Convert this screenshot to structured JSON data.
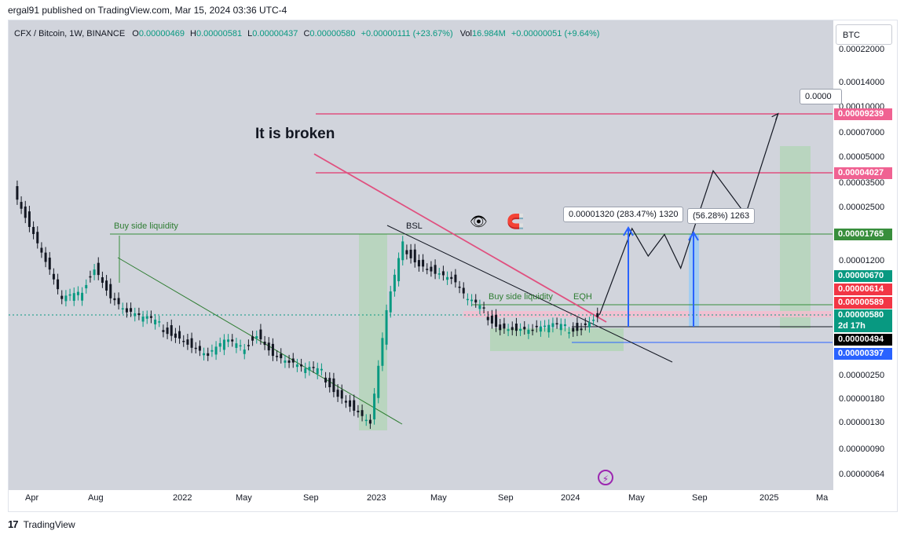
{
  "header": {
    "publisher_line": "ergal91 published on TradingView.com, Mar 15, 2024 03:36 UTC-4"
  },
  "legend": {
    "symbol": "CFX / Bitcoin, 1W, BINANCE",
    "open_label": "O",
    "open": "0.00000469",
    "high_label": "H",
    "high": "0.00000581",
    "low_label": "L",
    "low": "0.00000437",
    "close_label": "C",
    "close": "0.00000580",
    "change": "+0.00000111 (+23.67%)",
    "vol_label": "Vol",
    "vol": "16.984M",
    "vol_change": "+0.00000051 (+9.64%)"
  },
  "currency_button": "BTC",
  "colors": {
    "up": "#089981",
    "down": "#131722",
    "pink": "#e0507f",
    "green_line": "#388e3c",
    "blue": "#2962ff"
  },
  "chart_data": {
    "type": "line",
    "title": "CFX / Bitcoin, 1W, BINANCE",
    "y_scale": "log",
    "y_ticks": [
      "0.00022000",
      "0.00014000",
      "0.00010000",
      "0.00007000",
      "0.00005000",
      "0.00003500",
      "0.00002500",
      "0.00001200",
      "0.00000250",
      "0.00000180",
      "0.00000130",
      "0.00000090",
      "0.00000064"
    ],
    "x_ticks": [
      "Apr",
      "Aug",
      "2022",
      "May",
      "Sep",
      "2023",
      "May",
      "Sep",
      "2024",
      "May",
      "Sep",
      "2025",
      "Ma"
    ],
    "price_badges": [
      {
        "value": "0.00009239",
        "color": "#f06292"
      },
      {
        "value": "0.00004027",
        "color": "#f06292"
      },
      {
        "value": "0.00001765",
        "color": "#388e3c"
      },
      {
        "value": "0.00000670",
        "color": "#089981"
      },
      {
        "value": "0.00000614",
        "color": "#f23645"
      },
      {
        "value": "0.00000589",
        "color": "#f23645"
      },
      {
        "value": "0.00000580",
        "color": "#089981"
      },
      {
        "value": "2d 17h",
        "color": "#089981"
      },
      {
        "value": "0.00000494",
        "color": "#000000"
      },
      {
        "value": "0.00000397",
        "color": "#2962ff"
      }
    ],
    "price_path": [
      [
        "2021-03",
        3.3e-05
      ],
      [
        "2021-04",
        2e-05
      ],
      [
        "2021-05",
        1.2e-05
      ],
      [
        "2021-06",
        7e-06
      ],
      [
        "2021-07",
        7.5e-06
      ],
      [
        "2021-08",
        1.15e-05
      ],
      [
        "2021-09",
        7.5e-06
      ],
      [
        "2021-10",
        6e-06
      ],
      [
        "2021-11",
        5.5e-06
      ],
      [
        "2021-12",
        5e-06
      ],
      [
        "2022-01",
        4.5e-06
      ],
      [
        "2022-02",
        3.8e-06
      ],
      [
        "2022-03",
        3.3e-06
      ],
      [
        "2022-04",
        4e-06
      ],
      [
        "2022-05",
        3.6e-06
      ],
      [
        "2022-06",
        4.6e-06
      ],
      [
        "2022-07",
        3.4e-06
      ],
      [
        "2022-08",
        3e-06
      ],
      [
        "2022-09",
        2.7e-06
      ],
      [
        "2022-10",
        2.6e-06
      ],
      [
        "2022-11",
        2e-06
      ],
      [
        "2022-12",
        1.6e-06
      ],
      [
        "2023-01",
        1.3e-06
      ],
      [
        "2023-02",
        6e-06
      ],
      [
        "2023-03",
        1.5e-05
      ],
      [
        "2023-04",
        1.2e-05
      ],
      [
        "2023-05",
        1.05e-05
      ],
      [
        "2023-06",
        9.5e-06
      ],
      [
        "2023-07",
        7e-06
      ],
      [
        "2023-08",
        6e-06
      ],
      [
        "2023-09",
        5e-06
      ],
      [
        "2023-10",
        4.8e-06
      ],
      [
        "2023-11",
        4.7e-06
      ],
      [
        "2023-12",
        4.9e-06
      ],
      [
        "2024-01",
        4.8e-06
      ],
      [
        "2024-02",
        5e-06
      ],
      [
        "2024-03",
        5.8e-06
      ]
    ],
    "projection_path": [
      [
        "2024-03",
        5.8e-06
      ],
      [
        "2024-05",
        1.9e-05
      ],
      [
        "2024-06",
        1.3e-05
      ],
      [
        "2024-07",
        1.75e-05
      ],
      [
        "2024-08",
        1.1e-05
      ],
      [
        "2024-10",
        4.2e-05
      ],
      [
        "2024-12",
        2.3e-05
      ],
      [
        "2025-02",
        9.2e-05
      ]
    ]
  },
  "annotations": {
    "buy_side_left": "Buy side liquidity",
    "bsl": "BSL",
    "buy_side_right": "Buy side liquidity",
    "eqh": "EQH",
    "it_is_broken": "It is broken",
    "measure_1": "0.00001320 (283.47%) 1320",
    "measure_2": "(56.28%) 1263",
    "target_label": "0.0000"
  },
  "footer": {
    "brand": "TradingView",
    "logo": "17"
  }
}
